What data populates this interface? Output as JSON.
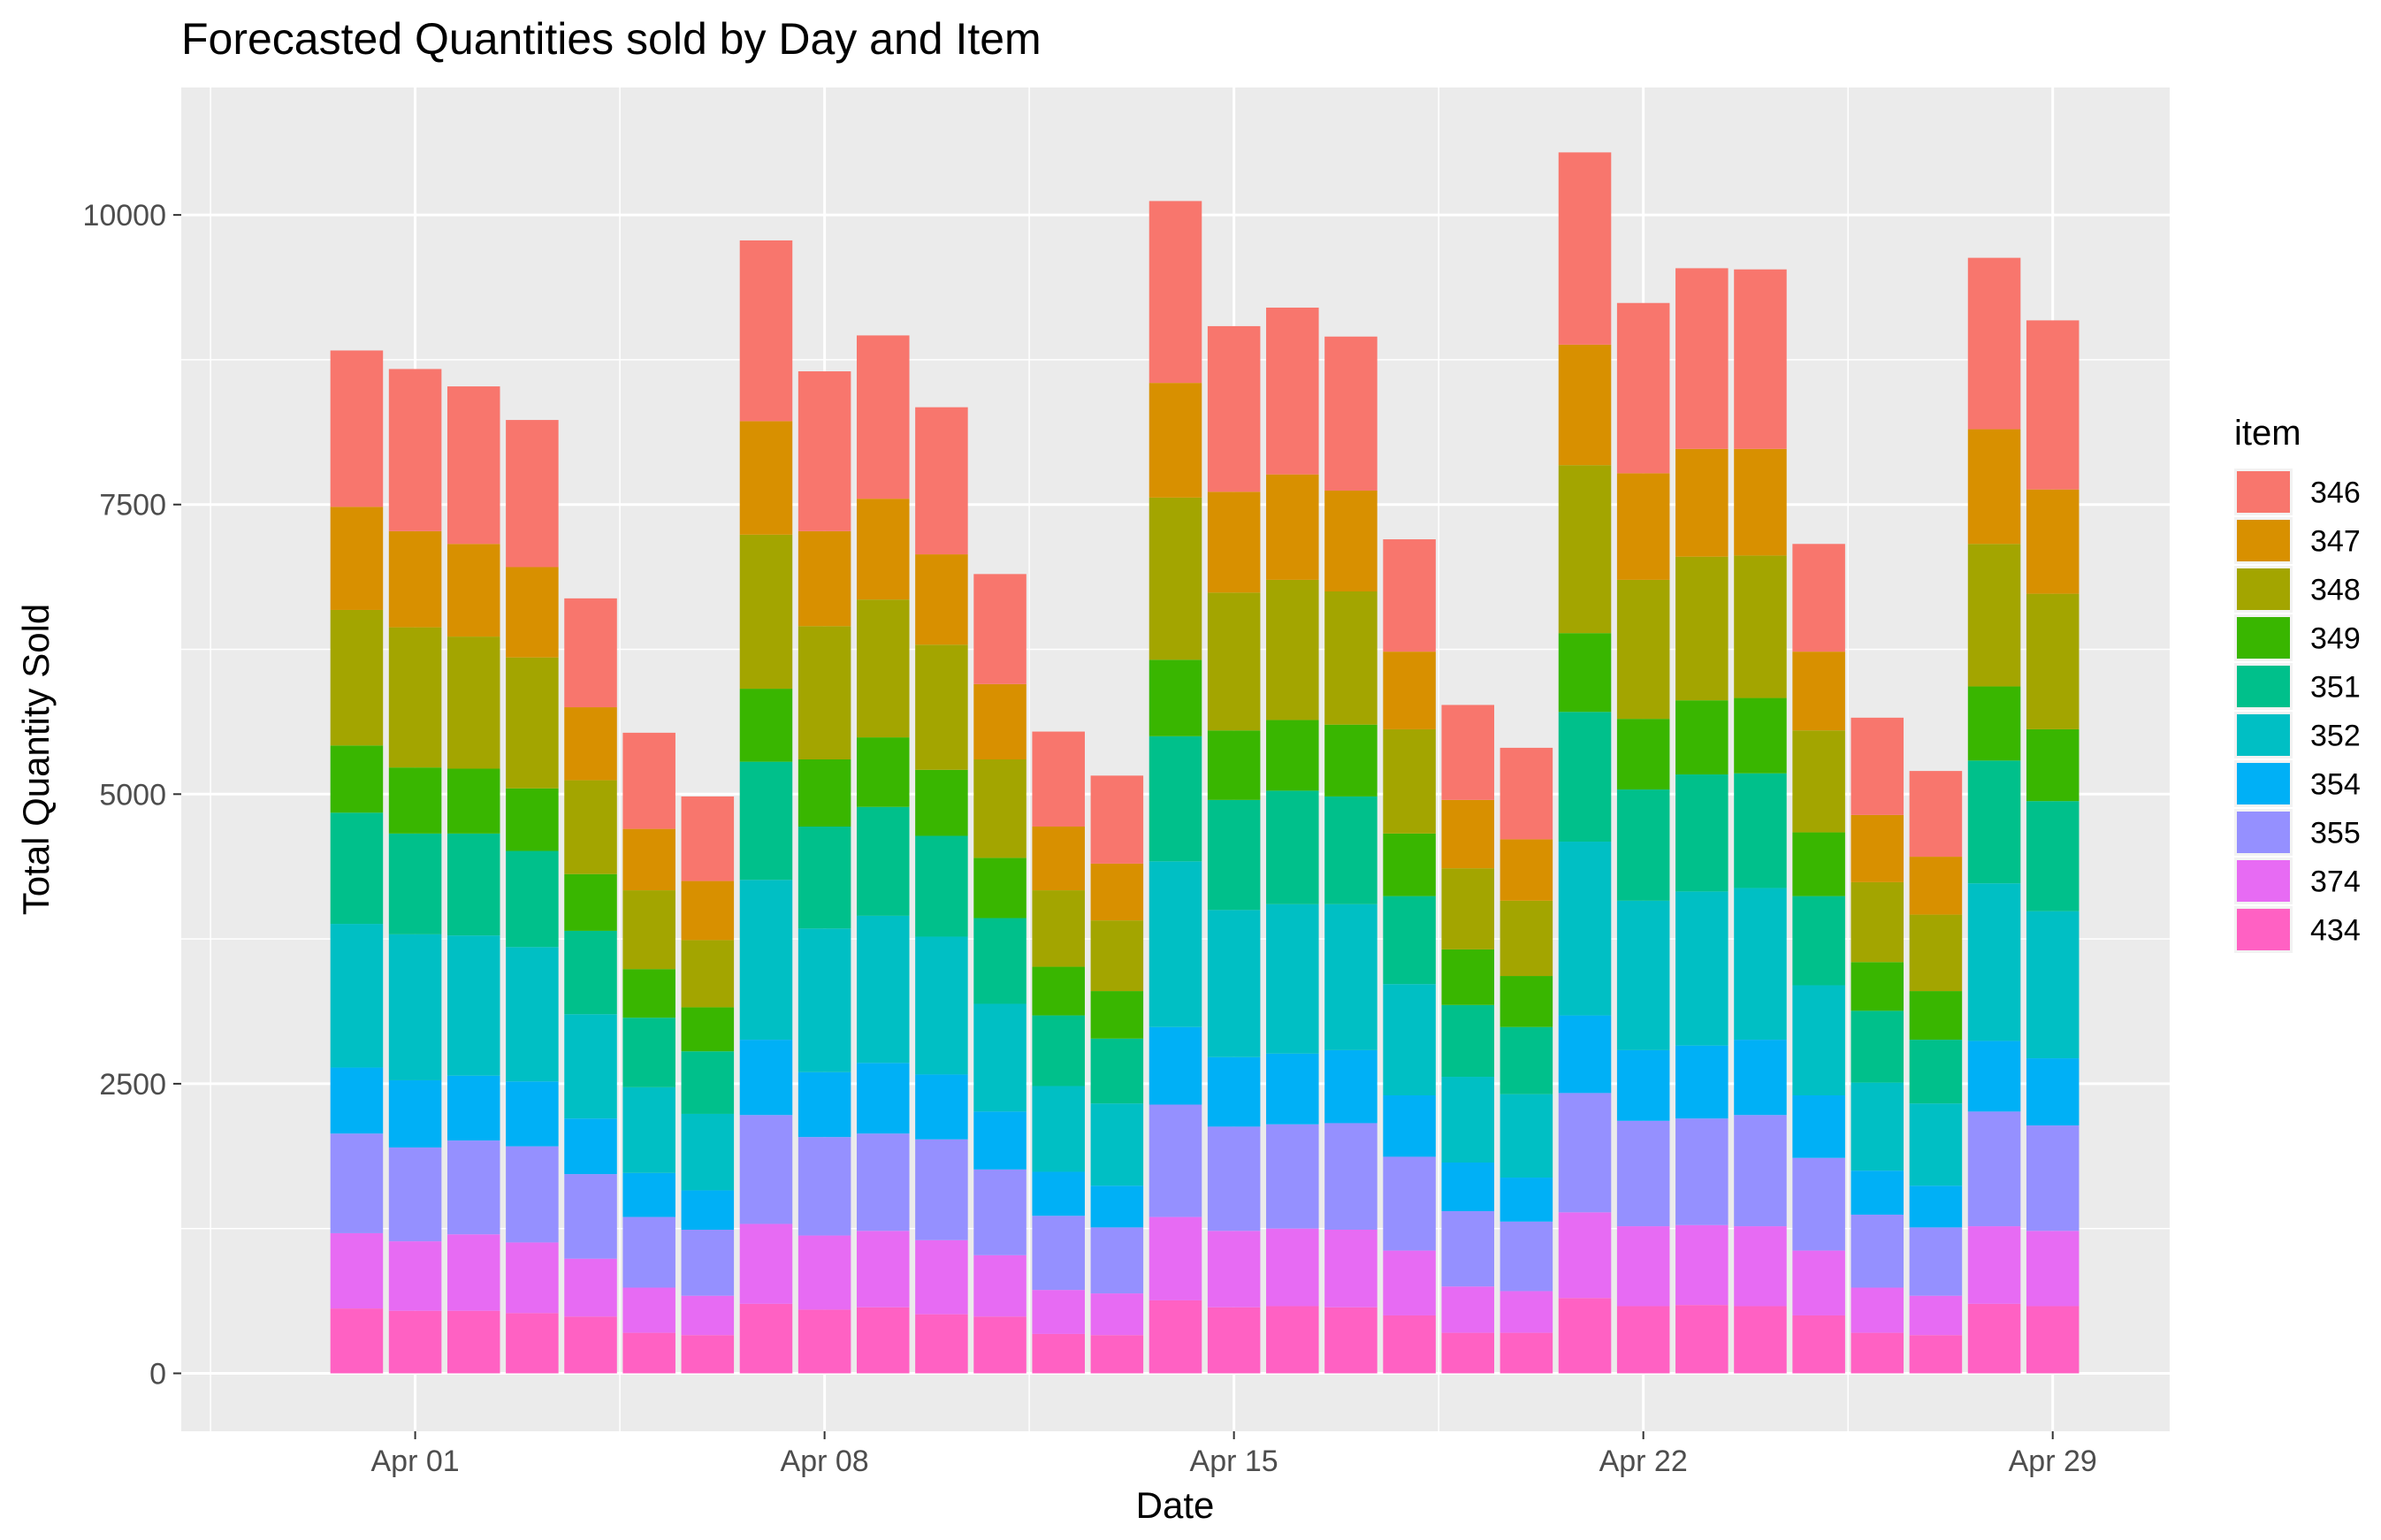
{
  "chart_data": {
    "type": "bar",
    "stacked": true,
    "title": "Forecasted Quantities sold by Day and Item",
    "xlabel": "Date",
    "ylabel": "Total Quantity Sold",
    "x_tick_labels": [
      {
        "label": "Apr 01",
        "date": "2021-04-01"
      },
      {
        "label": "Apr 08",
        "date": "2021-04-08"
      },
      {
        "label": "Apr 15",
        "date": "2021-04-15"
      },
      {
        "label": "Apr 22",
        "date": "2021-04-22"
      },
      {
        "label": "Apr 29",
        "date": "2021-04-29"
      }
    ],
    "y_ticks": [
      0,
      2500,
      5000,
      7500,
      10000
    ],
    "y_tick_labels": [
      "0",
      "2500",
      "5000",
      "7500",
      "10000"
    ],
    "xlim": [
      "2021-03-28",
      "2021-05-01"
    ],
    "ylim": [
      -500,
      11100
    ],
    "grid": true,
    "legend": {
      "title": "item",
      "position": "right"
    },
    "categories": [
      "2021-03-31",
      "2021-04-01",
      "2021-04-02",
      "2021-04-03",
      "2021-04-04",
      "2021-04-05",
      "2021-04-06",
      "2021-04-07",
      "2021-04-08",
      "2021-04-09",
      "2021-04-10",
      "2021-04-11",
      "2021-04-12",
      "2021-04-13",
      "2021-04-14",
      "2021-04-15",
      "2021-04-16",
      "2021-04-17",
      "2021-04-18",
      "2021-04-19",
      "2021-04-20",
      "2021-04-21",
      "2021-04-22",
      "2021-04-23",
      "2021-04-24",
      "2021-04-25",
      "2021-04-26",
      "2021-04-27",
      "2021-04-28",
      "2021-04-29"
    ],
    "series": [
      {
        "name": "434",
        "color": "#FF61C3",
        "values": [
          560,
          540,
          540,
          520,
          490,
          350,
          330,
          600,
          550,
          570,
          510,
          490,
          340,
          330,
          630,
          570,
          580,
          570,
          500,
          350,
          350,
          650,
          580,
          590,
          580,
          500,
          350,
          330,
          600,
          580
        ]
      },
      {
        "name": "374",
        "color": "#E76BF3",
        "values": [
          650,
          600,
          660,
          610,
          500,
          390,
          340,
          690,
          640,
          660,
          640,
          530,
          380,
          360,
          720,
          660,
          670,
          670,
          560,
          400,
          360,
          740,
          690,
          690,
          690,
          560,
          390,
          340,
          670,
          650
        ]
      },
      {
        "name": "355",
        "color": "#9590FF",
        "values": [
          860,
          810,
          810,
          830,
          730,
          610,
          570,
          940,
          850,
          840,
          870,
          740,
          640,
          570,
          970,
          900,
          900,
          920,
          810,
          650,
          600,
          1030,
          910,
          920,
          960,
          800,
          630,
          590,
          990,
          910
        ]
      },
      {
        "name": "354",
        "color": "#00B0F6",
        "values": [
          570,
          580,
          560,
          560,
          480,
          380,
          340,
          650,
          560,
          610,
          560,
          500,
          380,
          360,
          670,
          600,
          610,
          630,
          530,
          420,
          380,
          670,
          610,
          630,
          650,
          540,
          380,
          360,
          610,
          580
        ]
      },
      {
        "name": "352",
        "color": "#00BFC4",
        "values": [
          1240,
          1260,
          1210,
          1160,
          900,
          740,
          660,
          1380,
          1240,
          1270,
          1190,
          930,
          740,
          710,
          1430,
          1270,
          1290,
          1260,
          960,
          740,
          720,
          1500,
          1290,
          1330,
          1310,
          950,
          760,
          710,
          1360,
          1270
        ]
      },
      {
        "name": "351",
        "color": "#00C08B",
        "values": [
          960,
          870,
          880,
          830,
          720,
          600,
          540,
          1020,
          880,
          940,
          870,
          740,
          610,
          560,
          1080,
          950,
          980,
          930,
          760,
          620,
          580,
          1120,
          960,
          1010,
          990,
          770,
          620,
          550,
          1060,
          950
        ]
      },
      {
        "name": "349",
        "color": "#39B600",
        "values": [
          580,
          570,
          560,
          540,
          490,
          420,
          380,
          630,
          580,
          600,
          570,
          520,
          420,
          410,
          660,
          600,
          610,
          620,
          540,
          480,
          440,
          680,
          610,
          640,
          650,
          550,
          420,
          420,
          640,
          620
        ]
      },
      {
        "name": "348",
        "color": "#A3A500",
        "values": [
          1170,
          1210,
          1140,
          1130,
          810,
          680,
          580,
          1330,
          1150,
          1190,
          1080,
          850,
          660,
          610,
          1400,
          1190,
          1210,
          1150,
          900,
          700,
          650,
          1450,
          1200,
          1240,
          1230,
          880,
          690,
          660,
          1230,
          1170
        ]
      },
      {
        "name": "347",
        "color": "#D89000",
        "values": [
          890,
          830,
          800,
          780,
          630,
          530,
          510,
          980,
          820,
          870,
          780,
          650,
          550,
          490,
          990,
          870,
          910,
          870,
          670,
          590,
          530,
          1040,
          920,
          930,
          920,
          680,
          580,
          500,
          990,
          900
        ]
      },
      {
        "name": "346",
        "color": "#F8766D",
        "values": [
          1350,
          1400,
          1360,
          1270,
          940,
          830,
          730,
          1560,
          1380,
          1410,
          1270,
          950,
          820,
          760,
          1570,
          1430,
          1440,
          1330,
          970,
          820,
          790,
          1660,
          1470,
          1560,
          1550,
          930,
          840,
          740,
          1480,
          1460
        ]
      }
    ]
  }
}
